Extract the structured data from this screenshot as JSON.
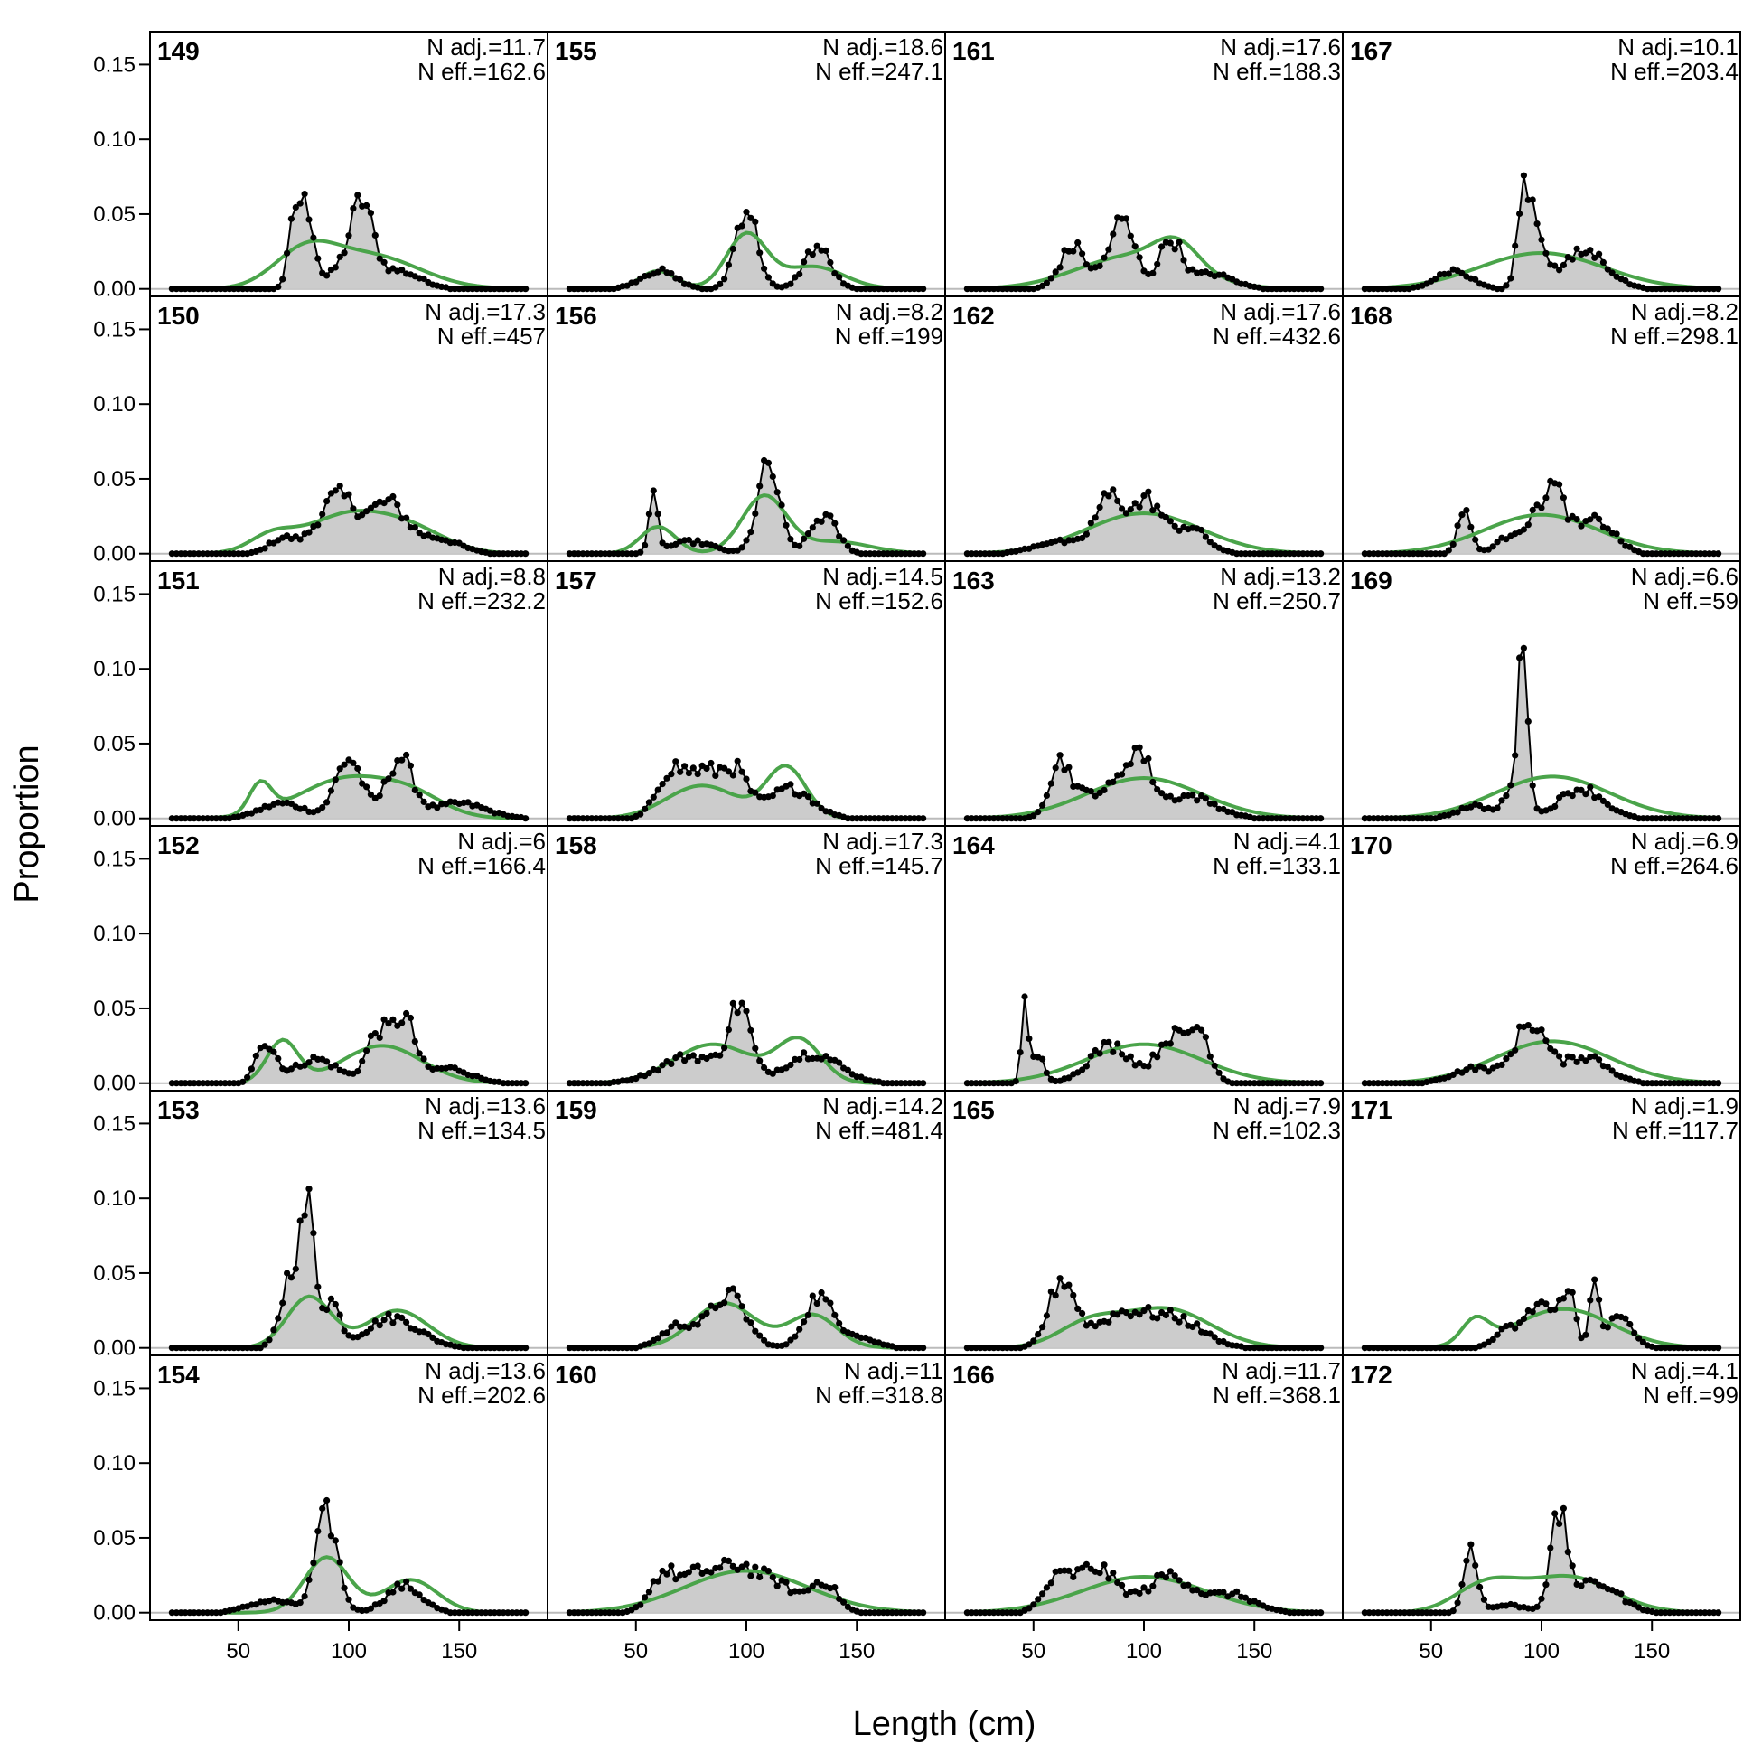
{
  "chart_data": {
    "type": "line",
    "title": "",
    "xlabel": "Length (cm)",
    "ylabel": "Proportion",
    "xlim": [
      10,
      190
    ],
    "ylim": [
      -0.005,
      0.172
    ],
    "x_ticks": [
      50,
      100,
      150
    ],
    "x_tick_labels": [
      "50",
      "100",
      "150"
    ],
    "y_ticks": [
      0,
      0.05,
      0.1,
      0.15
    ],
    "y_tick_labels": [
      "0.00",
      "0.05",
      "0.10",
      "0.15"
    ],
    "length_bins": {
      "start": 20,
      "end": 180,
      "step": 2
    },
    "grid": false,
    "colors": {
      "observed_fill": "#cccccc",
      "observed_line": "#000000",
      "expected_line": "#4aa44a",
      "zero_line": "#bbbbbb"
    },
    "panels": [
      {
        "label": "149",
        "n_adj_text": "N adj.=11.7",
        "n_eff_text": "N eff.=162.6",
        "observed_peaks": [
          [
            76,
            0.05,
            3
          ],
          [
            82,
            0.045,
            3
          ],
          [
            106,
            0.053,
            5
          ],
          [
            96,
            0.012,
            6
          ],
          [
            122,
            0.012,
            10
          ]
        ],
        "expected_modes": [
          [
            80,
            0.022,
            14
          ],
          [
            110,
            0.022,
            22
          ]
        ]
      },
      {
        "label": "150",
        "n_adj_text": "N adj.=17.3",
        "n_eff_text": "N eff.=457",
        "observed_peaks": [
          [
            95,
            0.038,
            9
          ],
          [
            118,
            0.032,
            8
          ],
          [
            70,
            0.01,
            6
          ],
          [
            140,
            0.01,
            10
          ]
        ],
        "expected_modes": [
          [
            65,
            0.01,
            10
          ],
          [
            100,
            0.026,
            20
          ],
          [
            130,
            0.012,
            16
          ]
        ]
      },
      {
        "label": "151",
        "n_adj_text": "N adj.=8.8",
        "n_eff_text": "N eff.=232.2",
        "observed_peaks": [
          [
            100,
            0.04,
            6
          ],
          [
            123,
            0.04,
            6
          ],
          [
            70,
            0.01,
            10
          ],
          [
            150,
            0.01,
            12
          ]
        ],
        "expected_modes": [
          [
            60,
            0.02,
            5
          ],
          [
            100,
            0.027,
            22
          ],
          [
            130,
            0.01,
            14
          ]
        ]
      },
      {
        "label": "152",
        "n_adj_text": "N adj.=6",
        "n_eff_text": "N eff.=166.4",
        "observed_peaks": [
          [
            60,
            0.025,
            3
          ],
          [
            66,
            0.015,
            3
          ],
          [
            113,
            0.033,
            5
          ],
          [
            125,
            0.042,
            5
          ],
          [
            85,
            0.016,
            10
          ],
          [
            145,
            0.01,
            10
          ]
        ],
        "expected_modes": [
          [
            70,
            0.028,
            7
          ],
          [
            115,
            0.025,
            18
          ]
        ]
      },
      {
        "label": "153",
        "n_adj_text": "N adj.=13.6",
        "n_eff_text": "N eff.=134.5",
        "observed_peaks": [
          [
            75,
            0.055,
            5
          ],
          [
            82,
            0.072,
            3
          ],
          [
            92,
            0.03,
            4
          ],
          [
            120,
            0.02,
            12
          ]
        ],
        "expected_modes": [
          [
            82,
            0.034,
            10
          ],
          [
            122,
            0.025,
            14
          ]
        ]
      },
      {
        "label": "154",
        "n_adj_text": "N adj.=13.6",
        "n_eff_text": "N eff.=202.6",
        "observed_peaks": [
          [
            90,
            0.064,
            5
          ],
          [
            125,
            0.018,
            8
          ],
          [
            65,
            0.008,
            10
          ]
        ],
        "expected_modes": [
          [
            90,
            0.037,
            10
          ],
          [
            128,
            0.022,
            12
          ]
        ]
      },
      {
        "label": "155",
        "n_adj_text": "N adj.=18.6",
        "n_eff_text": "N eff.=247.1",
        "observed_peaks": [
          [
            100,
            0.055,
            5
          ],
          [
            132,
            0.028,
            6
          ],
          [
            60,
            0.012,
            8
          ]
        ],
        "expected_modes": [
          [
            60,
            0.012,
            8
          ],
          [
            100,
            0.036,
            9
          ],
          [
            130,
            0.015,
            14
          ]
        ]
      },
      {
        "label": "156",
        "n_adj_text": "N adj.=8.2",
        "n_eff_text": "N eff.=199",
        "observed_peaks": [
          [
            58,
            0.035,
            2
          ],
          [
            110,
            0.058,
            5
          ],
          [
            135,
            0.025,
            6
          ],
          [
            75,
            0.008,
            10
          ]
        ],
        "expected_modes": [
          [
            60,
            0.018,
            8
          ],
          [
            108,
            0.038,
            10
          ],
          [
            140,
            0.008,
            16
          ]
        ]
      },
      {
        "label": "157",
        "n_adj_text": "N adj.=14.5",
        "n_eff_text": "N eff.=152.6",
        "observed_peaks": [
          [
            65,
            0.028,
            6
          ],
          [
            80,
            0.03,
            8
          ],
          [
            95,
            0.028,
            6
          ],
          [
            120,
            0.02,
            10
          ]
        ],
        "expected_modes": [
          [
            80,
            0.022,
            16
          ],
          [
            118,
            0.034,
            9
          ]
        ]
      },
      {
        "label": "158",
        "n_adj_text": "N adj.=17.3",
        "n_eff_text": "N eff.=145.7",
        "observed_peaks": [
          [
            97,
            0.048,
            5
          ],
          [
            75,
            0.018,
            14
          ],
          [
            130,
            0.02,
            12
          ]
        ],
        "expected_modes": [
          [
            85,
            0.026,
            18
          ],
          [
            124,
            0.028,
            10
          ]
        ]
      },
      {
        "label": "159",
        "n_adj_text": "N adj.=14.2",
        "n_eff_text": "N eff.=481.4",
        "observed_peaks": [
          [
            92,
            0.035,
            8
          ],
          [
            132,
            0.03,
            6
          ],
          [
            70,
            0.015,
            8
          ],
          [
            145,
            0.01,
            10
          ]
        ],
        "expected_modes": [
          [
            90,
            0.03,
            14
          ],
          [
            130,
            0.022,
            11
          ]
        ]
      },
      {
        "label": "160",
        "n_adj_text": "N adj.=11",
        "n_eff_text": "N eff.=318.8",
        "observed_peaks": [
          [
            62,
            0.024,
            6
          ],
          [
            78,
            0.024,
            8
          ],
          [
            95,
            0.025,
            8
          ],
          [
            112,
            0.02,
            10
          ],
          [
            135,
            0.02,
            6
          ]
        ],
        "expected_modes": [
          [
            100,
            0.028,
            28
          ]
        ]
      },
      {
        "label": "161",
        "n_adj_text": "N adj.=17.6",
        "n_eff_text": "N eff.=188.3",
        "observed_peaks": [
          [
            68,
            0.028,
            6
          ],
          [
            90,
            0.045,
            6
          ],
          [
            112,
            0.032,
            5
          ],
          [
            130,
            0.01,
            10
          ]
        ],
        "expected_modes": [
          [
            95,
            0.022,
            25
          ],
          [
            115,
            0.018,
            10
          ]
        ]
      },
      {
        "label": "162",
        "n_adj_text": "N adj.=17.6",
        "n_eff_text": "N eff.=432.6",
        "observed_peaks": [
          [
            85,
            0.038,
            7
          ],
          [
            102,
            0.033,
            6
          ],
          [
            120,
            0.018,
            8
          ],
          [
            60,
            0.008,
            10
          ]
        ],
        "expected_modes": [
          [
            100,
            0.027,
            26
          ]
        ]
      },
      {
        "label": "163",
        "n_adj_text": "N adj.=13.2",
        "n_eff_text": "N eff.=250.7",
        "observed_peaks": [
          [
            62,
            0.035,
            5
          ],
          [
            97,
            0.04,
            6
          ],
          [
            80,
            0.018,
            10
          ],
          [
            120,
            0.015,
            12
          ]
        ],
        "expected_modes": [
          [
            100,
            0.027,
            26
          ]
        ]
      },
      {
        "label": "164",
        "n_adj_text": "N adj.=4.1",
        "n_eff_text": "N eff.=133.1",
        "observed_peaks": [
          [
            46,
            0.048,
            1.5
          ],
          [
            52,
            0.018,
            3
          ],
          [
            85,
            0.025,
            10
          ],
          [
            112,
            0.03,
            6
          ],
          [
            125,
            0.035,
            5
          ]
        ],
        "expected_modes": [
          [
            100,
            0.026,
            26
          ]
        ]
      },
      {
        "label": "165",
        "n_adj_text": "N adj.=7.9",
        "n_eff_text": "N eff.=102.3",
        "observed_peaks": [
          [
            63,
            0.045,
            6
          ],
          [
            90,
            0.022,
            12
          ],
          [
            115,
            0.018,
            12
          ]
        ],
        "expected_modes": [
          [
            75,
            0.015,
            14
          ],
          [
            110,
            0.026,
            20
          ]
        ]
      },
      {
        "label": "166",
        "n_adj_text": "N adj.=11.7",
        "n_eff_text": "N eff.=368.1",
        "observed_peaks": [
          [
            78,
            0.03,
            10
          ],
          [
            112,
            0.025,
            10
          ],
          [
            60,
            0.018,
            6
          ],
          [
            140,
            0.012,
            10
          ]
        ],
        "expected_modes": [
          [
            100,
            0.024,
            28
          ]
        ]
      },
      {
        "label": "167",
        "n_adj_text": "N adj.=10.1",
        "n_eff_text": "N eff.=203.4",
        "observed_peaks": [
          [
            92,
            0.06,
            3
          ],
          [
            98,
            0.035,
            4
          ],
          [
            120,
            0.025,
            10
          ],
          [
            60,
            0.012,
            8
          ]
        ],
        "expected_modes": [
          [
            100,
            0.024,
            28
          ]
        ]
      },
      {
        "label": "168",
        "n_adj_text": "N adj.=8.2",
        "n_eff_text": "N eff.=298.1",
        "observed_peaks": [
          [
            65,
            0.03,
            3
          ],
          [
            105,
            0.042,
            6
          ],
          [
            125,
            0.022,
            8
          ],
          [
            90,
            0.015,
            8
          ]
        ],
        "expected_modes": [
          [
            100,
            0.026,
            26
          ]
        ]
      },
      {
        "label": "169",
        "n_adj_text": "N adj.=6.6",
        "n_eff_text": "N eff.=59",
        "observed_peaks": [
          [
            92,
            0.105,
            2.2
          ],
          [
            88,
            0.025,
            4
          ],
          [
            118,
            0.02,
            10
          ],
          [
            70,
            0.008,
            8
          ]
        ],
        "expected_modes": [
          [
            105,
            0.028,
            26
          ]
        ]
      },
      {
        "label": "170",
        "n_adj_text": "N adj.=6.9",
        "n_eff_text": "N eff.=264.6",
        "observed_peaks": [
          [
            95,
            0.04,
            7
          ],
          [
            120,
            0.018,
            10
          ],
          [
            70,
            0.01,
            10
          ]
        ],
        "expected_modes": [
          [
            105,
            0.028,
            26
          ]
        ]
      },
      {
        "label": "171",
        "n_adj_text": "N adj.=1.9",
        "n_eff_text": "N eff.=117.7",
        "observed_peaks": [
          [
            100,
            0.03,
            6
          ],
          [
            112,
            0.04,
            3
          ],
          [
            124,
            0.048,
            2
          ],
          [
            135,
            0.02,
            6
          ],
          [
            85,
            0.012,
            6
          ]
        ],
        "expected_modes": [
          [
            70,
            0.016,
            6
          ],
          [
            110,
            0.026,
            22
          ]
        ]
      },
      {
        "label": "172",
        "n_adj_text": "N adj.=4.1",
        "n_eff_text": "N eff.=99",
        "observed_peaks": [
          [
            68,
            0.045,
            3
          ],
          [
            108,
            0.06,
            4
          ],
          [
            125,
            0.02,
            10
          ],
          [
            85,
            0.005,
            8
          ]
        ],
        "expected_modes": [
          [
            75,
            0.018,
            14
          ],
          [
            112,
            0.024,
            20
          ]
        ]
      }
    ]
  }
}
